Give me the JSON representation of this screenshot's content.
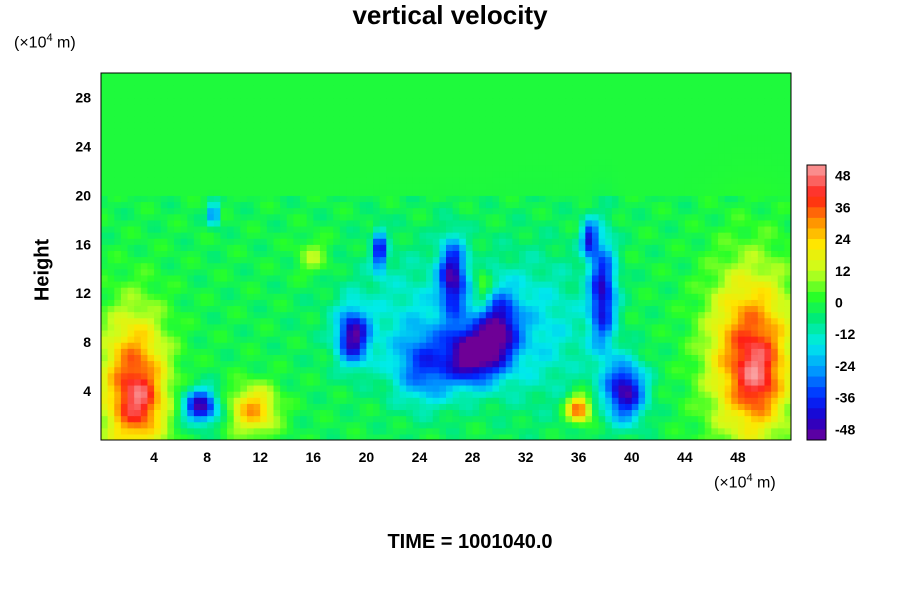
{
  "chart_data": {
    "type": "heatmap",
    "title": "vertical velocity",
    "ylabel": "Height",
    "x_unit": {
      "base": "(×10",
      "exp": "4",
      "unit": " m)"
    },
    "y_unit": {
      "base": "(×10",
      "exp": "4",
      "unit": " m)"
    },
    "xlim": [
      0,
      52
    ],
    "ylim": [
      0,
      30
    ],
    "x_ticks": [
      "4",
      "8",
      "12",
      "16",
      "20",
      "24",
      "28",
      "32",
      "36",
      "40",
      "44",
      "48"
    ],
    "x_tick_values": [
      4,
      8,
      12,
      16,
      20,
      24,
      28,
      32,
      36,
      40,
      44,
      48
    ],
    "y_ticks": [
      "4",
      "8",
      "12",
      "16",
      "20",
      "24",
      "28"
    ],
    "y_tick_values": [
      4,
      8,
      12,
      16,
      20,
      24,
      28
    ],
    "colorbar": {
      "ticks": [
        "48",
        "36",
        "24",
        "12",
        "0",
        "-12",
        "-24",
        "-36",
        "-48"
      ],
      "tick_values": [
        48,
        36,
        24,
        12,
        0,
        -12,
        -24,
        -36,
        -48
      ],
      "range": [
        -52,
        52
      ]
    },
    "features": [
      {
        "x": 2.5,
        "y": 4.5,
        "rx": 2.5,
        "ry": 6.0,
        "value": 40
      },
      {
        "x": 3.0,
        "y": 3.0,
        "rx": 1.5,
        "ry": 2.0,
        "value": 12
      },
      {
        "x": 7.5,
        "y": 2.8,
        "rx": 1.3,
        "ry": 1.4,
        "value": -46
      },
      {
        "x": 11.5,
        "y": 2.5,
        "rx": 1.8,
        "ry": 2.0,
        "value": 30
      },
      {
        "x": 8.5,
        "y": 18.5,
        "rx": 0.4,
        "ry": 0.9,
        "value": -34
      },
      {
        "x": 19.0,
        "y": 8.5,
        "rx": 1.2,
        "ry": 2.2,
        "value": -44
      },
      {
        "x": 21.0,
        "y": 15.5,
        "rx": 0.5,
        "ry": 1.7,
        "value": -38
      },
      {
        "x": 26.5,
        "y": 13.5,
        "rx": 1.0,
        "ry": 3.0,
        "value": -40
      },
      {
        "x": 28.0,
        "y": 7.0,
        "rx": 1.8,
        "ry": 2.3,
        "value": -46
      },
      {
        "x": 24.5,
        "y": 6.0,
        "rx": 2.5,
        "ry": 3.0,
        "value": -28
      },
      {
        "x": 30.0,
        "y": 9.0,
        "rx": 1.5,
        "ry": 3.0,
        "value": -36
      },
      {
        "x": 28.8,
        "y": 12.5,
        "rx": 0.7,
        "ry": 1.6,
        "value": 18
      },
      {
        "x": 36.0,
        "y": 2.6,
        "rx": 0.9,
        "ry": 1.1,
        "value": 40
      },
      {
        "x": 39.5,
        "y": 4.0,
        "rx": 1.5,
        "ry": 2.4,
        "value": -46
      },
      {
        "x": 37.8,
        "y": 12.0,
        "rx": 1.0,
        "ry": 4.5,
        "value": -40
      },
      {
        "x": 36.8,
        "y": 16.5,
        "rx": 0.6,
        "ry": 1.5,
        "value": -34
      },
      {
        "x": 16.0,
        "y": 15.0,
        "rx": 1.2,
        "ry": 1.5,
        "value": 12
      },
      {
        "x": 33.0,
        "y": 9.0,
        "rx": 4.0,
        "ry": 6.0,
        "value": -14
      },
      {
        "x": 24.0,
        "y": 10.5,
        "rx": 6.0,
        "ry": 5.0,
        "value": -12
      },
      {
        "x": 49.0,
        "y": 7.0,
        "rx": 3.2,
        "ry": 7.0,
        "value": 40
      },
      {
        "x": 49.5,
        "y": 5.0,
        "rx": 1.5,
        "ry": 3.0,
        "value": 14
      }
    ]
  },
  "time_label": "TIME = 1001040.0"
}
